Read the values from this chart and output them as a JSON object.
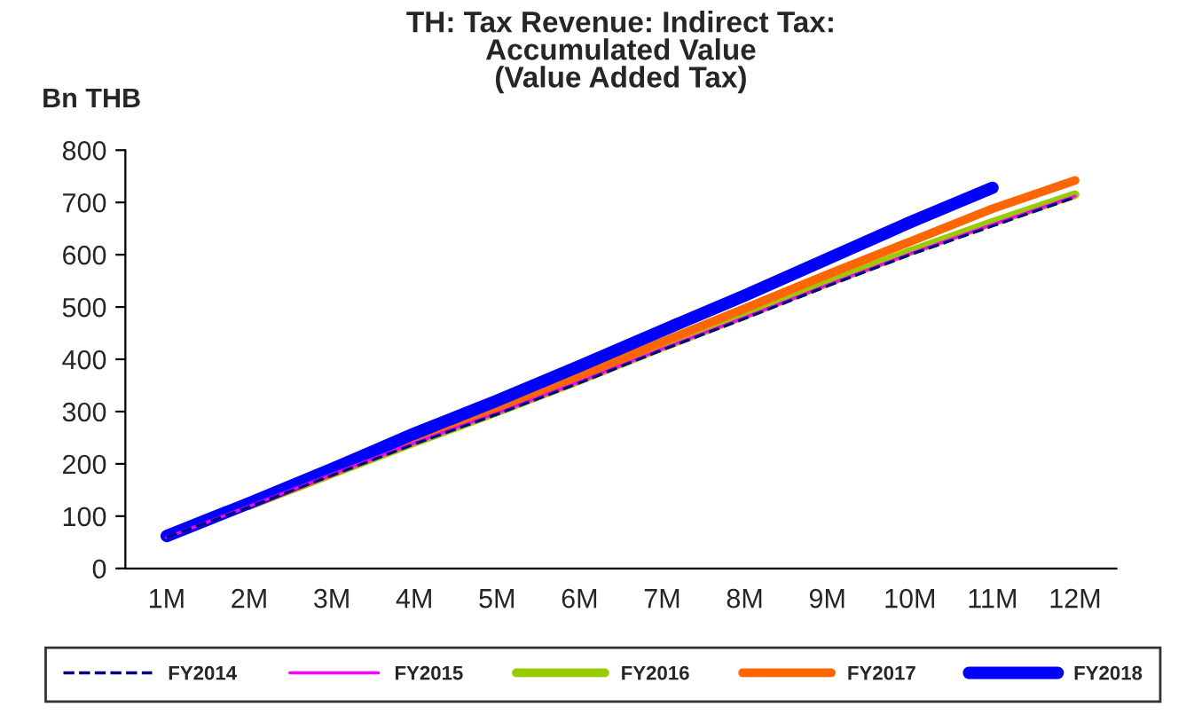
{
  "chart_data": {
    "type": "line",
    "title": "TH: Tax Revenue: Indirect Tax:\nAccumulated Value\n(Value Added Tax)",
    "ylabel": "Bn THB",
    "categories": [
      "1M",
      "2M",
      "3M",
      "4M",
      "5M",
      "6M",
      "7M",
      "8M",
      "9M",
      "10M",
      "11M",
      "12M"
    ],
    "series": [
      {
        "name": "FY2014",
        "color": "#000080",
        "line_style": "dashed",
        "values": [
          59,
          118,
          178,
          238,
          295,
          355,
          418,
          478,
          540,
          600,
          655,
          710
        ]
      },
      {
        "name": "FY2015",
        "color": "#ff00ff",
        "values": [
          59,
          119,
          180,
          240,
          297,
          357,
          420,
          480,
          542,
          602,
          658,
          712
        ]
      },
      {
        "name": "FY2016",
        "color": "#99cc00",
        "values": [
          null,
          120,
          181,
          241,
          299,
          360,
          423,
          484,
          546,
          606,
          662,
          715
        ]
      },
      {
        "name": "FY2017",
        "color": "#ff6600",
        "values": [
          null,
          121,
          183,
          245,
          305,
          368,
          433,
          497,
          562,
          625,
          688,
          742
        ]
      },
      {
        "name": "FY2018",
        "color": "#0000ff",
        "values": [
          62,
          125,
          190,
          258,
          321,
          387,
          455,
          522,
          592,
          662,
          728,
          null
        ]
      }
    ],
    "ylim": [
      0,
      800
    ],
    "yticks": [
      0,
      100,
      200,
      300,
      400,
      500,
      600,
      700,
      800
    ],
    "legend": "bottom",
    "grid": false
  }
}
